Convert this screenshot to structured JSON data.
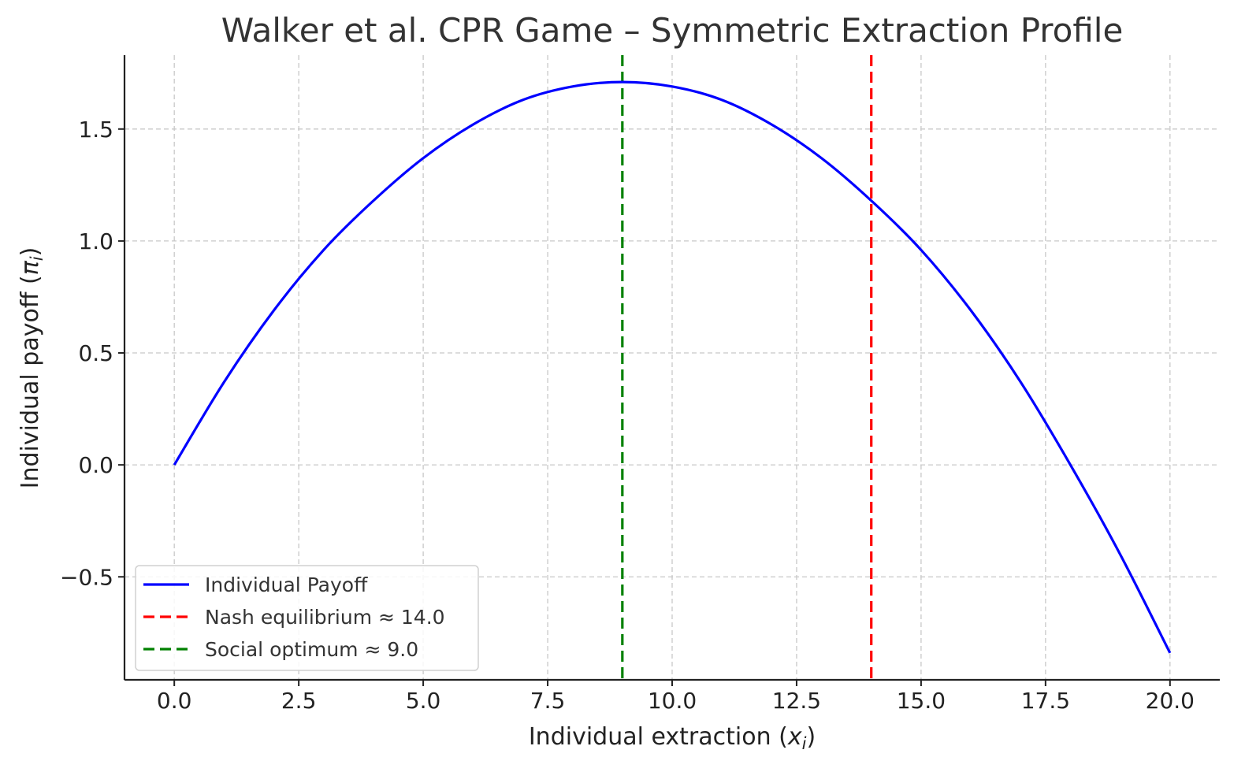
{
  "chart_data": {
    "type": "line",
    "title": "Walker et al. CPR Game – Symmetric Extraction Profile",
    "xlabel": "Individual extraction (x_i)",
    "xlabel_parts": {
      "text": "Individual extraction (",
      "var": "x",
      "sub": "i",
      "close": ")"
    },
    "ylabel": "Individual payoff (π_i)",
    "ylabel_parts": {
      "text": "Individual payoff (",
      "var": "π",
      "sub": "i",
      "close": ")"
    },
    "xlim": [
      -1.0,
      21.0
    ],
    "ylim": [
      -0.96,
      1.83
    ],
    "xticks": [
      0.0,
      2.5,
      5.0,
      7.5,
      10.0,
      12.5,
      15.0,
      17.5,
      20.0
    ],
    "xtick_labels": [
      "0.0",
      "2.5",
      "5.0",
      "7.5",
      "10.0",
      "12.5",
      "15.0",
      "17.5",
      "20.0"
    ],
    "yticks": [
      -0.5,
      0.0,
      0.5,
      1.0,
      1.5
    ],
    "ytick_labels": [
      "−0.5",
      "0.0",
      "0.5",
      "1.0",
      "1.5"
    ],
    "grid": true,
    "legend_position": "bottom-left",
    "series": [
      {
        "name": "Individual Payoff",
        "color": "#0000ff",
        "style": "solid",
        "x": [
          0,
          1,
          2,
          3,
          4,
          5,
          6,
          7,
          8,
          9,
          10,
          11,
          12,
          13,
          14,
          15,
          16,
          17,
          18,
          19,
          20
        ],
        "y": [
          0.0,
          0.37,
          0.69,
          0.96,
          1.18,
          1.37,
          1.52,
          1.63,
          1.69,
          1.71,
          1.69,
          1.63,
          1.52,
          1.37,
          1.18,
          0.96,
          0.69,
          0.37,
          0.0,
          -0.4,
          -0.84
        ]
      },
      {
        "name": "Nash equilibrium ≈ 14.0",
        "color": "#ff0000",
        "style": "dashed",
        "vline": 14.0
      },
      {
        "name": "Social optimum ≈ 9.0",
        "color": "#008000",
        "style": "dashed",
        "vline": 9.0
      }
    ]
  }
}
